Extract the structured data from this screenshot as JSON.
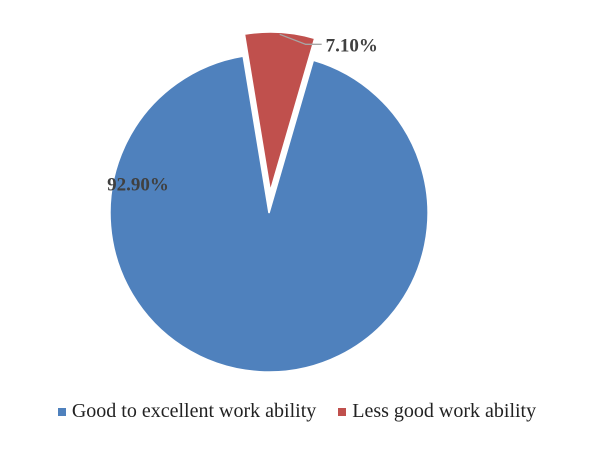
{
  "chart_data": {
    "type": "pie",
    "title": "",
    "slices": [
      {
        "label": "Good to excellent work ability",
        "value": 92.9,
        "display": "92.90%",
        "color": "#4F81BD",
        "exploded": false
      },
      {
        "label": "Less good work ability",
        "value": 7.1,
        "display": "7.10%",
        "color": "#C0504D",
        "exploded": true
      }
    ],
    "legend_position": "bottom",
    "data_labels": true
  }
}
